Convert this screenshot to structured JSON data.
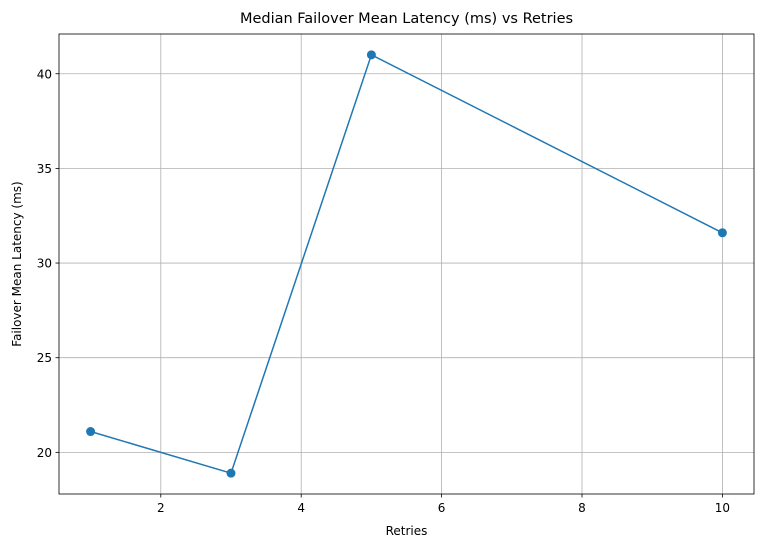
{
  "chart_data": {
    "type": "line",
    "title": "Median Failover Mean Latency (ms) vs Retries",
    "xlabel": "Retries",
    "ylabel": "Failover Mean Latency (ms)",
    "x": [
      1,
      3,
      5,
      10
    ],
    "series": [
      {
        "values": [
          21.1,
          18.9,
          41.0,
          31.6
        ]
      }
    ],
    "xlim": [
      0.55,
      10.45
    ],
    "ylim": [
      17.8,
      42.1
    ],
    "xticks": [
      2,
      4,
      6,
      8,
      10
    ],
    "yticks": [
      20,
      25,
      30,
      35,
      40
    ],
    "grid": true,
    "line_color": "#1f77b4",
    "marker": "circle"
  }
}
